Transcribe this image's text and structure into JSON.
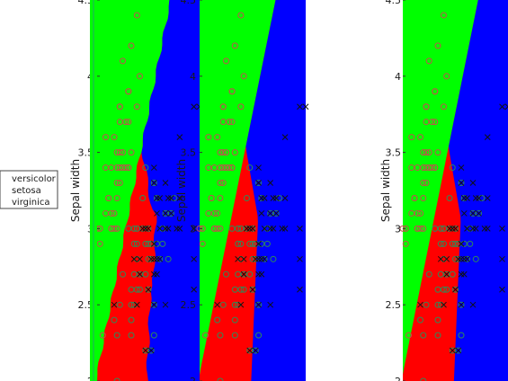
{
  "chart_data": [
    {
      "type": "scatter",
      "panel": "left",
      "ylabel": "Sepal width",
      "ylim": [
        2,
        4.5
      ],
      "yticks": [
        "2",
        "2.5",
        "3",
        "3.5",
        "4",
        "4.5"
      ],
      "legend": [
        "versicolor",
        "setosa",
        "virginica"
      ],
      "legend_placement": "left"
    },
    {
      "type": "scatter",
      "panel": "middle",
      "ylabel": "Sepal width",
      "ylim": [
        2,
        4.5
      ],
      "yticks": [
        "2",
        "2.5",
        "3",
        "3.5",
        "4",
        "4.5"
      ]
    },
    {
      "type": "scatter",
      "panel": "right",
      "ylabel": "Sepal width",
      "ylim": [
        2,
        4.5
      ],
      "yticks": [
        "2",
        "2.5",
        "3",
        "3.5",
        "4",
        "4.5"
      ]
    }
  ],
  "colors": {
    "region_setosa": "#00ff00",
    "region_versicolor": "#ff0000",
    "region_virginica": "#0000ff",
    "marker_setosa": "#c0504d",
    "marker_versicolor": "#2e8b57",
    "marker_virginica": "#111111"
  },
  "points": {
    "setosa": [
      [
        4.4,
        3.0
      ],
      [
        4.6,
        3.4
      ],
      [
        4.7,
        3.2
      ],
      [
        4.8,
        3.0
      ],
      [
        4.8,
        3.4
      ],
      [
        4.9,
        3.1
      ],
      [
        4.9,
        3.6
      ],
      [
        5.0,
        3.0
      ],
      [
        5.0,
        3.3
      ],
      [
        5.0,
        3.4
      ],
      [
        5.0,
        3.5
      ],
      [
        5.1,
        3.3
      ],
      [
        5.1,
        3.5
      ],
      [
        5.1,
        3.7
      ],
      [
        5.1,
        3.8
      ],
      [
        5.2,
        3.4
      ],
      [
        5.2,
        3.5
      ],
      [
        5.2,
        4.1
      ],
      [
        5.3,
        3.7
      ],
      [
        5.4,
        3.4
      ],
      [
        5.4,
        3.7
      ],
      [
        5.4,
        3.9
      ],
      [
        5.5,
        3.5
      ],
      [
        5.5,
        4.2
      ],
      [
        5.7,
        3.8
      ],
      [
        5.7,
        4.4
      ],
      [
        5.8,
        4.0
      ],
      [
        4.5,
        2.3
      ],
      [
        4.3,
        3.0
      ],
      [
        4.6,
        3.1
      ],
      [
        4.8,
        3.1
      ],
      [
        4.4,
        2.9
      ],
      [
        4.9,
        3.0
      ],
      [
        5.0,
        3.2
      ],
      [
        4.7,
        3.2
      ],
      [
        4.6,
        3.6
      ],
      [
        5.4,
        3.9
      ],
      [
        5.1,
        3.4
      ],
      [
        5.3,
        3.4
      ],
      [
        4.8,
        3.0
      ],
      [
        5.1,
        3.8
      ],
      [
        5.4,
        3.4
      ]
    ],
    "versicolor": [
      [
        4.9,
        2.4
      ],
      [
        5.0,
        2.0
      ],
      [
        5.0,
        2.3
      ],
      [
        5.1,
        2.5
      ],
      [
        5.2,
        2.7
      ],
      [
        5.5,
        2.3
      ],
      [
        5.5,
        2.4
      ],
      [
        5.5,
        2.5
      ],
      [
        5.5,
        2.6
      ],
      [
        5.6,
        2.5
      ],
      [
        5.6,
        2.7
      ],
      [
        5.6,
        2.9
      ],
      [
        5.6,
        3.0
      ],
      [
        5.7,
        2.6
      ],
      [
        5.7,
        2.8
      ],
      [
        5.7,
        2.9
      ],
      [
        5.7,
        3.0
      ],
      [
        5.8,
        2.6
      ],
      [
        5.8,
        2.7
      ],
      [
        5.9,
        3.0
      ],
      [
        5.9,
        3.2
      ],
      [
        6.0,
        2.2
      ],
      [
        6.0,
        2.7
      ],
      [
        6.0,
        2.9
      ],
      [
        6.0,
        3.4
      ],
      [
        6.1,
        2.8
      ],
      [
        6.1,
        2.9
      ],
      [
        6.1,
        3.0
      ],
      [
        6.2,
        2.2
      ],
      [
        6.2,
        2.9
      ],
      [
        6.3,
        2.3
      ],
      [
        6.3,
        2.5
      ],
      [
        6.3,
        3.3
      ],
      [
        6.4,
        2.9
      ],
      [
        6.4,
        3.2
      ],
      [
        6.5,
        2.8
      ],
      [
        6.6,
        2.9
      ],
      [
        6.6,
        3.0
      ],
      [
        6.7,
        3.1
      ],
      [
        6.8,
        2.8
      ],
      [
        6.9,
        3.1
      ],
      [
        7.0,
        3.2
      ],
      [
        6.1,
        2.6
      ],
      [
        5.4,
        3.0
      ],
      [
        6.2,
        2.8
      ]
    ],
    "virginica": [
      [
        4.9,
        2.5
      ],
      [
        5.6,
        2.8
      ],
      [
        5.7,
        2.5
      ],
      [
        5.8,
        2.7
      ],
      [
        5.8,
        2.8
      ],
      [
        5.9,
        3.0
      ],
      [
        6.0,
        2.2
      ],
      [
        6.0,
        3.0
      ],
      [
        6.1,
        2.6
      ],
      [
        6.1,
        3.0
      ],
      [
        6.2,
        2.8
      ],
      [
        6.3,
        2.5
      ],
      [
        6.3,
        2.7
      ],
      [
        6.3,
        2.8
      ],
      [
        6.3,
        2.9
      ],
      [
        6.3,
        3.3
      ],
      [
        6.3,
        3.4
      ],
      [
        6.4,
        2.7
      ],
      [
        6.4,
        2.8
      ],
      [
        6.4,
        3.1
      ],
      [
        6.4,
        3.2
      ],
      [
        6.5,
        3.0
      ],
      [
        6.5,
        3.2
      ],
      [
        6.7,
        2.5
      ],
      [
        6.7,
        3.0
      ],
      [
        6.7,
        3.1
      ],
      [
        6.7,
        3.3
      ],
      [
        6.8,
        3.0
      ],
      [
        6.8,
        3.2
      ],
      [
        6.9,
        3.1
      ],
      [
        6.9,
        3.2
      ],
      [
        7.1,
        3.0
      ],
      [
        7.2,
        3.0
      ],
      [
        7.2,
        3.2
      ],
      [
        7.2,
        3.6
      ],
      [
        7.7,
        2.6
      ],
      [
        7.7,
        2.8
      ],
      [
        7.7,
        3.0
      ],
      [
        7.7,
        3.8
      ],
      [
        7.9,
        3.8
      ],
      [
        6.2,
        2.2
      ],
      [
        6.5,
        2.8
      ]
    ]
  }
}
